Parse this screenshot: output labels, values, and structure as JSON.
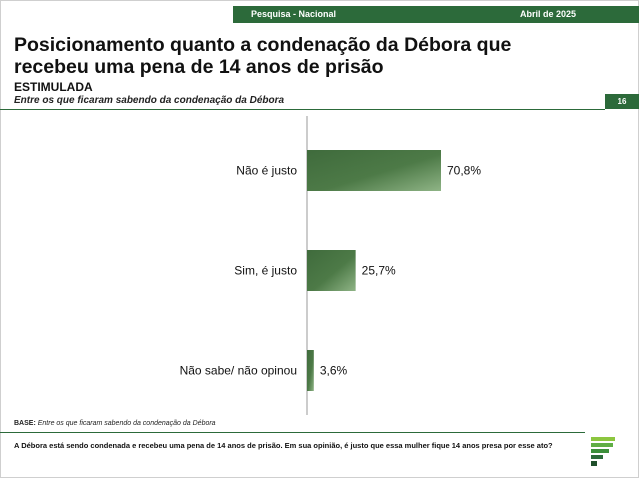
{
  "header": {
    "survey": "Pesquisa - Nacional",
    "date": "Abril de 2025"
  },
  "title": "Posicionamento quanto a condenação da Débora que recebeu uma pena de 14 anos de prisão",
  "subtitle": "ESTIMULADA",
  "filter_note": "Entre os que ficaram sabendo da condenação da Débora",
  "page_number": "16",
  "base_note": {
    "label": "BASE:",
    "text": "Entre os que ficaram sabendo da condenação da Débora"
  },
  "question": "A Débora está sendo condenada e recebeu uma pena de 14 anos de prisão. Em sua opinião, é justo que essa mulher fique 14 anos presa por esse ato?",
  "colors": {
    "brand_green": "#2c6a3a",
    "bar_dark": "#3f6b3c",
    "bar_light": "#8fb486"
  },
  "chart_data": {
    "type": "bar",
    "orientation": "horizontal",
    "categories": [
      "Não é justo",
      "Sim, é justo",
      "Não sabe/ não opinou"
    ],
    "values": [
      70.8,
      25.7,
      3.6
    ],
    "labels": [
      "70,8%",
      "25,7%",
      "3,6%"
    ],
    "xlim": [
      0,
      100
    ],
    "grid": false
  }
}
